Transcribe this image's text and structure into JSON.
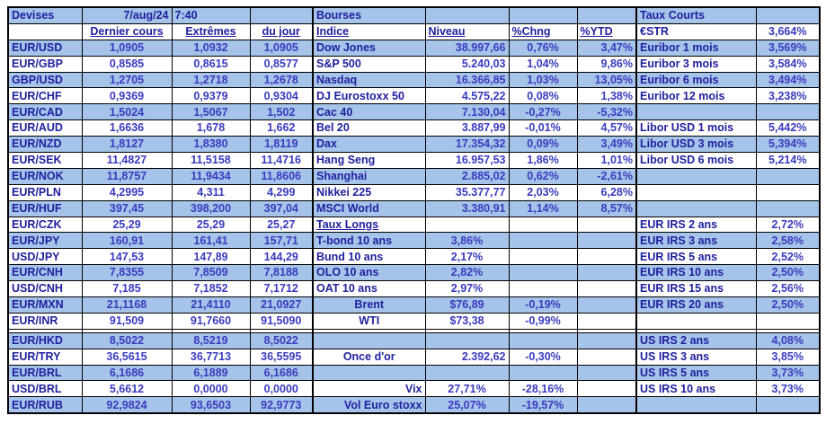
{
  "colors": {
    "row_shade": "#a6c4ea",
    "label_text": "#20209e",
    "value_text": "#3a3abe",
    "grid_border": "#000000",
    "background": "#ffffff"
  },
  "table": {
    "title_row": {
      "devises": "Devises",
      "date": "7/aug/24",
      "time": "7:40",
      "bourses": "Bourses",
      "taux_courts": "Taux Courts"
    },
    "header_row": {
      "dernier": "Dernier cours",
      "extremes": "Extrêmes",
      "du_jour": "du jour",
      "indice": "Indice",
      "niveau": "Niveau",
      "chng": "%Chng",
      "ytd": "%YTD",
      "estr_label": "€STR",
      "estr_value": "3,664%"
    },
    "rows": [
      {
        "devise": [
          "EUR/USD",
          "1,0905",
          "1,0932",
          "1,0905"
        ],
        "bourse": {
          "label": "Dow Jones",
          "niveau": "38.997,66",
          "chng": "0,76%",
          "ytd": "3,47%"
        },
        "taux": {
          "label": "Euribor 1 mois",
          "value": "3,569%"
        }
      },
      {
        "devise": [
          "EUR/GBP",
          "0,8585",
          "0,8615",
          "0,8577"
        ],
        "bourse": {
          "label": "S&P 500",
          "niveau": "5.240,03",
          "chng": "1,04%",
          "ytd": "9,86%"
        },
        "taux": {
          "label": "Euribor 3 mois",
          "value": "3,584%"
        }
      },
      {
        "devise": [
          "GBP/USD",
          "1,2705",
          "1,2718",
          "1,2678"
        ],
        "bourse": {
          "label": "Nasdaq",
          "niveau": "16.366,85",
          "chng": "1,03%",
          "ytd": "13,05%"
        },
        "taux": {
          "label": "Euribor 6 mois",
          "value": "3,494%"
        }
      },
      {
        "devise": [
          "EUR/CHF",
          "0,9369",
          "0,9379",
          "0,9304"
        ],
        "bourse": {
          "label": "DJ Eurostoxx 50",
          "niveau": "4.575,22",
          "chng": "0,08%",
          "ytd": "1,38%"
        },
        "taux": {
          "label": "Euribor 12 mois",
          "value": "3,238%"
        }
      },
      {
        "devise": [
          "EUR/CAD",
          "1,5024",
          "1,5067",
          "1,502"
        ],
        "bourse": {
          "label": "Cac 40",
          "niveau": "7.130,04",
          "chng": "-0,27%",
          "ytd": "-5,32%"
        },
        "taux": null
      },
      {
        "devise": [
          "EUR/AUD",
          "1,6636",
          "1,678",
          "1,662"
        ],
        "bourse": {
          "label": "Bel 20",
          "niveau": "3.887,99",
          "chng": "-0,01%",
          "ytd": "4,57%"
        },
        "taux": {
          "label": "Libor USD 1 mois",
          "value": "5,442%"
        }
      },
      {
        "devise": [
          "EUR/NZD",
          "1,8127",
          "1,8380",
          "1,8119"
        ],
        "bourse": {
          "label": "Dax",
          "niveau": "17.354,32",
          "chng": "0,09%",
          "ytd": "3,49%"
        },
        "taux": {
          "label": "Libor USD 3 mois",
          "value": "5,394%"
        }
      },
      {
        "devise": [
          "EUR/SEK",
          "11,4827",
          "11,5158",
          "11,4716"
        ],
        "bourse": {
          "label": "Hang Seng",
          "niveau": "16.957,53",
          "chng": "1,86%",
          "ytd": "1,01%"
        },
        "taux": {
          "label": "Libor USD 6 mois",
          "value": "5,214%"
        }
      },
      {
        "devise": [
          "EUR/NOK",
          "11,8757",
          "11,9434",
          "11,8606"
        ],
        "bourse": {
          "label": "Shanghai",
          "niveau": "2.885,02",
          "chng": "0,62%",
          "ytd": "-2,61%"
        },
        "taux": null
      },
      {
        "devise": [
          "EUR/PLN",
          "4,2995",
          "4,311",
          "4,299"
        ],
        "bourse": {
          "label": "Nikkei 225",
          "niveau": "35.377,77",
          "chng": "2,03%",
          "ytd": "6,28%"
        },
        "taux": null
      },
      {
        "devise": [
          "EUR/HUF",
          "397,45",
          "398,200",
          "397,04"
        ],
        "bourse": {
          "label": "MSCI World",
          "niveau": "3.380,91",
          "chng": "1,14%",
          "ytd": "8,57%"
        },
        "taux": null
      },
      {
        "devise": [
          "EUR/CZK",
          "25,29",
          "25,29",
          "25,27"
        ],
        "bourse": {
          "label": "Taux Longs",
          "underline": true
        },
        "taux": {
          "label": "EUR IRS 2 ans",
          "value": "2,72%"
        }
      },
      {
        "devise": [
          "EUR/JPY",
          "160,91",
          "161,41",
          "157,71"
        ],
        "bourse": {
          "label": "T-bond 10 ans",
          "niveau": "3,86%",
          "niveau_align": "center"
        },
        "taux": {
          "label": "EUR IRS 3 ans",
          "value": "2,58%"
        }
      },
      {
        "devise": [
          "USD/JPY",
          "147,53",
          "147,89",
          "144,29"
        ],
        "bourse": {
          "label": "Bund 10 ans",
          "niveau": "2,17%",
          "niveau_align": "center"
        },
        "taux": {
          "label": "EUR IRS 5 ans",
          "value": "2,52%"
        }
      },
      {
        "devise": [
          "EUR/CNH",
          "7,8355",
          "7,8509",
          "7,8188"
        ],
        "bourse": {
          "label": "OLO 10 ans",
          "niveau": "2,82%",
          "niveau_align": "center"
        },
        "taux": {
          "label": "EUR IRS 10 ans",
          "value": "2,50%"
        }
      },
      {
        "devise": [
          "USD/CNH",
          "7,185",
          "7,1852",
          "7,1712"
        ],
        "bourse": {
          "label": "OAT 10 ans",
          "niveau": "2,97%",
          "niveau_align": "center"
        },
        "taux": {
          "label": "EUR IRS 15 ans",
          "value": "2,56%"
        }
      },
      {
        "devise": [
          "EUR/MXN",
          "21,1168",
          "21,4110",
          "21,0927"
        ],
        "bourse": {
          "label": "Brent",
          "label_align": "center",
          "niveau": "$76,89",
          "niveau_align": "center",
          "chng": "-0,19%"
        },
        "taux": {
          "label": "EUR IRS 20 ans",
          "value": "2,50%"
        }
      },
      {
        "devise": [
          "EUR/INR",
          "91,509",
          "91,7660",
          "91,5090"
        ],
        "bourse": {
          "label": "WTI",
          "label_align": "center",
          "niveau": "$73,38",
          "niveau_align": "center",
          "chng": "-0,99%"
        },
        "taux": null
      },
      {
        "devise": [
          "EUR/HKD",
          "8,5022",
          "8,5219",
          "8,5022"
        ],
        "bourse": null,
        "taux": {
          "label": "US IRS 2 ans",
          "value": "4,08%"
        }
      },
      {
        "devise": [
          "EUR/TRY",
          "36,5615",
          "36,7713",
          "36,5595"
        ],
        "bourse": {
          "label": "Once d'or",
          "label_align": "center",
          "niveau": "2.392,62",
          "niveau_align": "right",
          "chng": "-0,30%"
        },
        "taux": {
          "label": "US IRS 3 ans",
          "value": "3,85%"
        }
      },
      {
        "devise": [
          "EUR/BRL",
          "6,1686",
          "6,1889",
          "6,1686"
        ],
        "bourse": null,
        "taux": {
          "label": "US IRS 5 ans",
          "value": "3,73%"
        }
      },
      {
        "devise": [
          "USD/BRL",
          "5,6612",
          "0,0000",
          "0,0000"
        ],
        "bourse": {
          "label": "Vix",
          "label_align": "right",
          "niveau": "27,71%",
          "niveau_align": "center",
          "chng": "-28,16%"
        },
        "taux": {
          "label": "US IRS 10 ans",
          "value": "3,73%"
        }
      },
      {
        "devise": [
          "EUR/RUB",
          "92,9824",
          "93,6503",
          "92,9773"
        ],
        "bourse": {
          "label": "Vol Euro stoxx",
          "label_align": "right",
          "niveau": "25,07%",
          "niveau_align": "center",
          "chng": "-19,57%"
        },
        "taux": null
      }
    ],
    "separator_after_row": 17
  }
}
